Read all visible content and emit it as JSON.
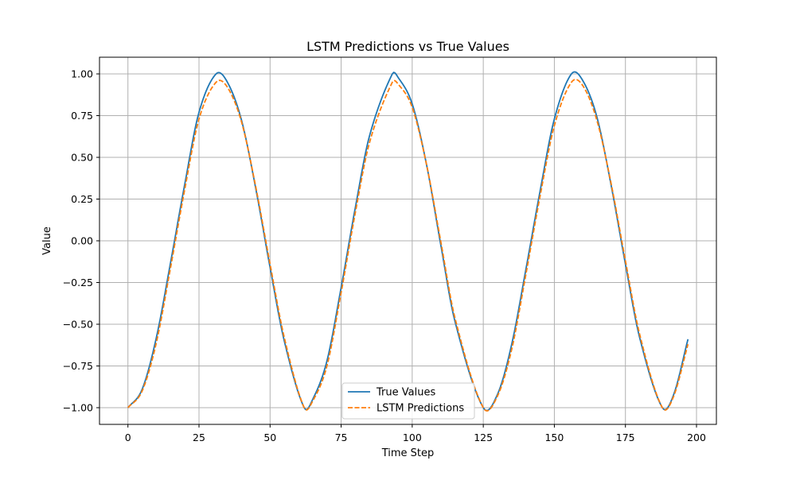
{
  "chart_data": {
    "type": "line",
    "title": "LSTM Predictions vs True Values",
    "xlabel": "Time Step",
    "ylabel": "Value",
    "xlim": [
      -10,
      207
    ],
    "ylim": [
      -1.1,
      1.1
    ],
    "xticks": [
      0,
      25,
      50,
      75,
      100,
      125,
      150,
      175,
      200
    ],
    "yticks": [
      -1.0,
      -0.75,
      -0.5,
      -0.25,
      0.0,
      0.25,
      0.5,
      0.75,
      1.0
    ],
    "xtick_labels": [
      "0",
      "25",
      "50",
      "75",
      "100",
      "125",
      "150",
      "175",
      "200"
    ],
    "ytick_labels": [
      "−1.00",
      "−0.75",
      "−0.50",
      "−0.25",
      "0.00",
      "0.25",
      "0.50",
      "0.75",
      "1.00"
    ],
    "grid": true,
    "legend_position": "lower-center",
    "series": [
      {
        "name": "True Values",
        "color": "#1f77b4",
        "style": "solid",
        "x": [
          0,
          5,
          10,
          15,
          20,
          25,
          31,
          35,
          40,
          45,
          50,
          55,
          62,
          65,
          70,
          75,
          80,
          85,
          93,
          95,
          100,
          105,
          110,
          115,
          125,
          130,
          135,
          140,
          145,
          150,
          156,
          160,
          165,
          170,
          175,
          180,
          188,
          192,
          197
        ],
        "y": [
          -1.0,
          -0.89,
          -0.58,
          -0.13,
          0.34,
          0.77,
          1.0,
          0.95,
          0.72,
          0.31,
          -0.16,
          -0.6,
          -1.0,
          -0.95,
          -0.72,
          -0.28,
          0.2,
          0.63,
          1.0,
          0.98,
          0.82,
          0.46,
          -0.02,
          -0.48,
          -1.0,
          -0.92,
          -0.62,
          -0.17,
          0.3,
          0.73,
          1.0,
          0.96,
          0.74,
          0.33,
          -0.14,
          -0.58,
          -1.0,
          -0.92,
          -0.59
        ]
      },
      {
        "name": "LSTM Predictions",
        "color": "#ff7f0e",
        "style": "dashed",
        "x": [
          0,
          5,
          10,
          15,
          20,
          25,
          31,
          35,
          40,
          45,
          50,
          55,
          62,
          65,
          70,
          75,
          80,
          85,
          93,
          95,
          100,
          105,
          110,
          115,
          125,
          130,
          135,
          140,
          145,
          150,
          156,
          160,
          165,
          170,
          175,
          180,
          188,
          192,
          197
        ],
        "y": [
          -1.0,
          -0.9,
          -0.61,
          -0.16,
          0.31,
          0.73,
          0.95,
          0.92,
          0.71,
          0.32,
          -0.14,
          -0.58,
          -1.0,
          -0.96,
          -0.75,
          -0.31,
          0.17,
          0.59,
          0.95,
          0.94,
          0.8,
          0.46,
          0.0,
          -0.46,
          -1.0,
          -0.93,
          -0.65,
          -0.2,
          0.27,
          0.69,
          0.95,
          0.93,
          0.72,
          0.34,
          -0.12,
          -0.56,
          -1.0,
          -0.93,
          -0.62
        ]
      }
    ]
  }
}
